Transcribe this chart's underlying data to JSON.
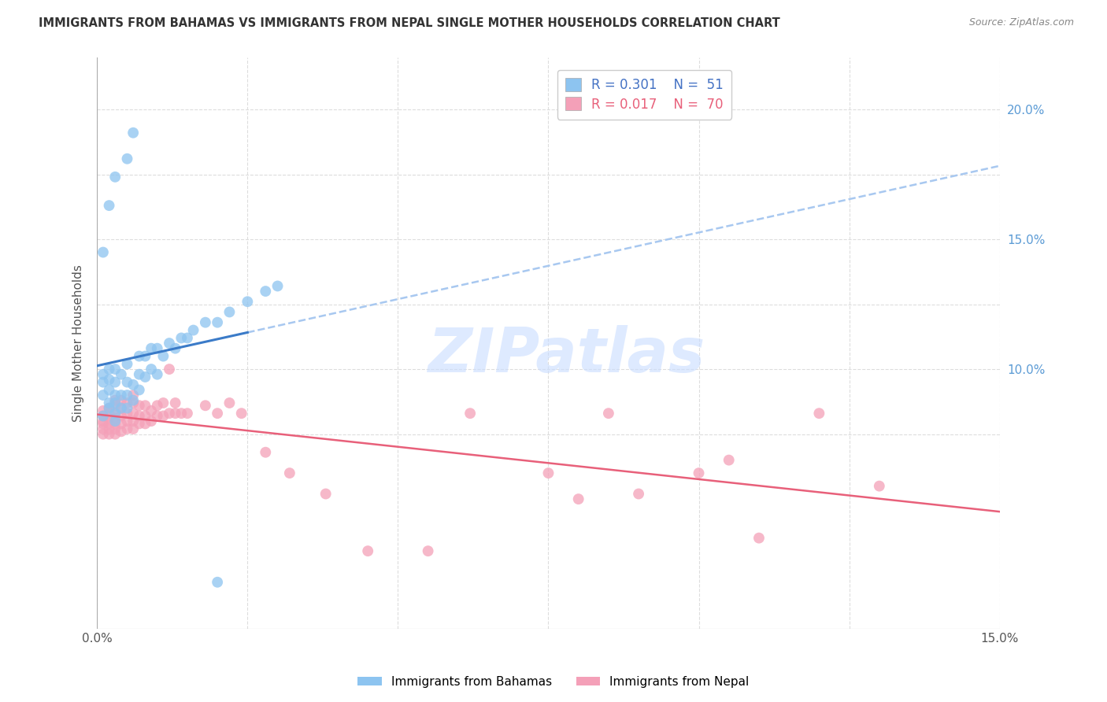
{
  "title": "IMMIGRANTS FROM BAHAMAS VS IMMIGRANTS FROM NEPAL SINGLE MOTHER HOUSEHOLDS CORRELATION CHART",
  "source": "Source: ZipAtlas.com",
  "ylabel": "Single Mother Households",
  "xlim": [
    0.0,
    0.15
  ],
  "ylim": [
    0.0,
    0.22
  ],
  "x_ticks": [
    0.0,
    0.025,
    0.05,
    0.075,
    0.1,
    0.125,
    0.15
  ],
  "x_tick_labels": [
    "0.0%",
    "",
    "",
    "",
    "",
    "",
    "15.0%"
  ],
  "y_ticks": [
    0.075,
    0.1,
    0.125,
    0.15,
    0.175,
    0.2
  ],
  "y_tick_labels_right": [
    "",
    "10.0%",
    "",
    "15.0%",
    "",
    "20.0%"
  ],
  "legend_R1": "R = 0.301",
  "legend_N1": "N =  51",
  "legend_R2": "R = 0.017",
  "legend_N2": "N =  70",
  "color_bahamas": "#8DC4F0",
  "color_nepal": "#F4A0B8",
  "color_line_bahamas": "#3B7BC8",
  "color_line_nepal": "#E8607A",
  "color_line_dashed": "#A8C8F0",
  "bahamas_x": [
    0.001,
    0.001,
    0.001,
    0.001,
    0.002,
    0.002,
    0.002,
    0.002,
    0.002,
    0.003,
    0.003,
    0.003,
    0.003,
    0.003,
    0.003,
    0.004,
    0.004,
    0.004,
    0.005,
    0.005,
    0.005,
    0.005,
    0.006,
    0.006,
    0.007,
    0.007,
    0.007,
    0.008,
    0.008,
    0.009,
    0.009,
    0.01,
    0.01,
    0.011,
    0.012,
    0.013,
    0.014,
    0.015,
    0.016,
    0.018,
    0.02,
    0.022,
    0.025,
    0.028,
    0.03,
    0.001,
    0.002,
    0.003,
    0.005,
    0.006,
    0.02
  ],
  "bahamas_y": [
    0.082,
    0.09,
    0.095,
    0.098,
    0.085,
    0.087,
    0.092,
    0.096,
    0.1,
    0.08,
    0.083,
    0.087,
    0.09,
    0.095,
    0.1,
    0.085,
    0.09,
    0.098,
    0.085,
    0.09,
    0.095,
    0.102,
    0.088,
    0.094,
    0.092,
    0.098,
    0.105,
    0.097,
    0.105,
    0.1,
    0.108,
    0.098,
    0.108,
    0.105,
    0.11,
    0.108,
    0.112,
    0.112,
    0.115,
    0.118,
    0.118,
    0.122,
    0.126,
    0.13,
    0.132,
    0.145,
    0.163,
    0.174,
    0.181,
    0.191,
    0.018
  ],
  "nepal_x": [
    0.001,
    0.001,
    0.001,
    0.001,
    0.001,
    0.001,
    0.002,
    0.002,
    0.002,
    0.002,
    0.002,
    0.002,
    0.003,
    0.003,
    0.003,
    0.003,
    0.003,
    0.003,
    0.003,
    0.004,
    0.004,
    0.004,
    0.004,
    0.004,
    0.005,
    0.005,
    0.005,
    0.005,
    0.006,
    0.006,
    0.006,
    0.006,
    0.006,
    0.007,
    0.007,
    0.007,
    0.008,
    0.008,
    0.008,
    0.009,
    0.009,
    0.01,
    0.01,
    0.011,
    0.011,
    0.012,
    0.012,
    0.013,
    0.013,
    0.014,
    0.015,
    0.018,
    0.02,
    0.022,
    0.024,
    0.028,
    0.032,
    0.038,
    0.045,
    0.055,
    0.062,
    0.075,
    0.08,
    0.085,
    0.09,
    0.1,
    0.105,
    0.11,
    0.12,
    0.13
  ],
  "nepal_y": [
    0.075,
    0.077,
    0.079,
    0.08,
    0.082,
    0.084,
    0.075,
    0.077,
    0.079,
    0.081,
    0.083,
    0.085,
    0.075,
    0.077,
    0.079,
    0.081,
    0.083,
    0.086,
    0.088,
    0.076,
    0.079,
    0.082,
    0.085,
    0.088,
    0.077,
    0.08,
    0.083,
    0.087,
    0.077,
    0.08,
    0.083,
    0.087,
    0.09,
    0.079,
    0.082,
    0.086,
    0.079,
    0.082,
    0.086,
    0.08,
    0.084,
    0.082,
    0.086,
    0.082,
    0.087,
    0.083,
    0.1,
    0.083,
    0.087,
    0.083,
    0.083,
    0.086,
    0.083,
    0.087,
    0.083,
    0.068,
    0.06,
    0.052,
    0.03,
    0.03,
    0.083,
    0.06,
    0.05,
    0.083,
    0.052,
    0.06,
    0.065,
    0.035,
    0.083,
    0.055
  ],
  "watermark": "ZIPatlas",
  "background_color": "#ffffff"
}
